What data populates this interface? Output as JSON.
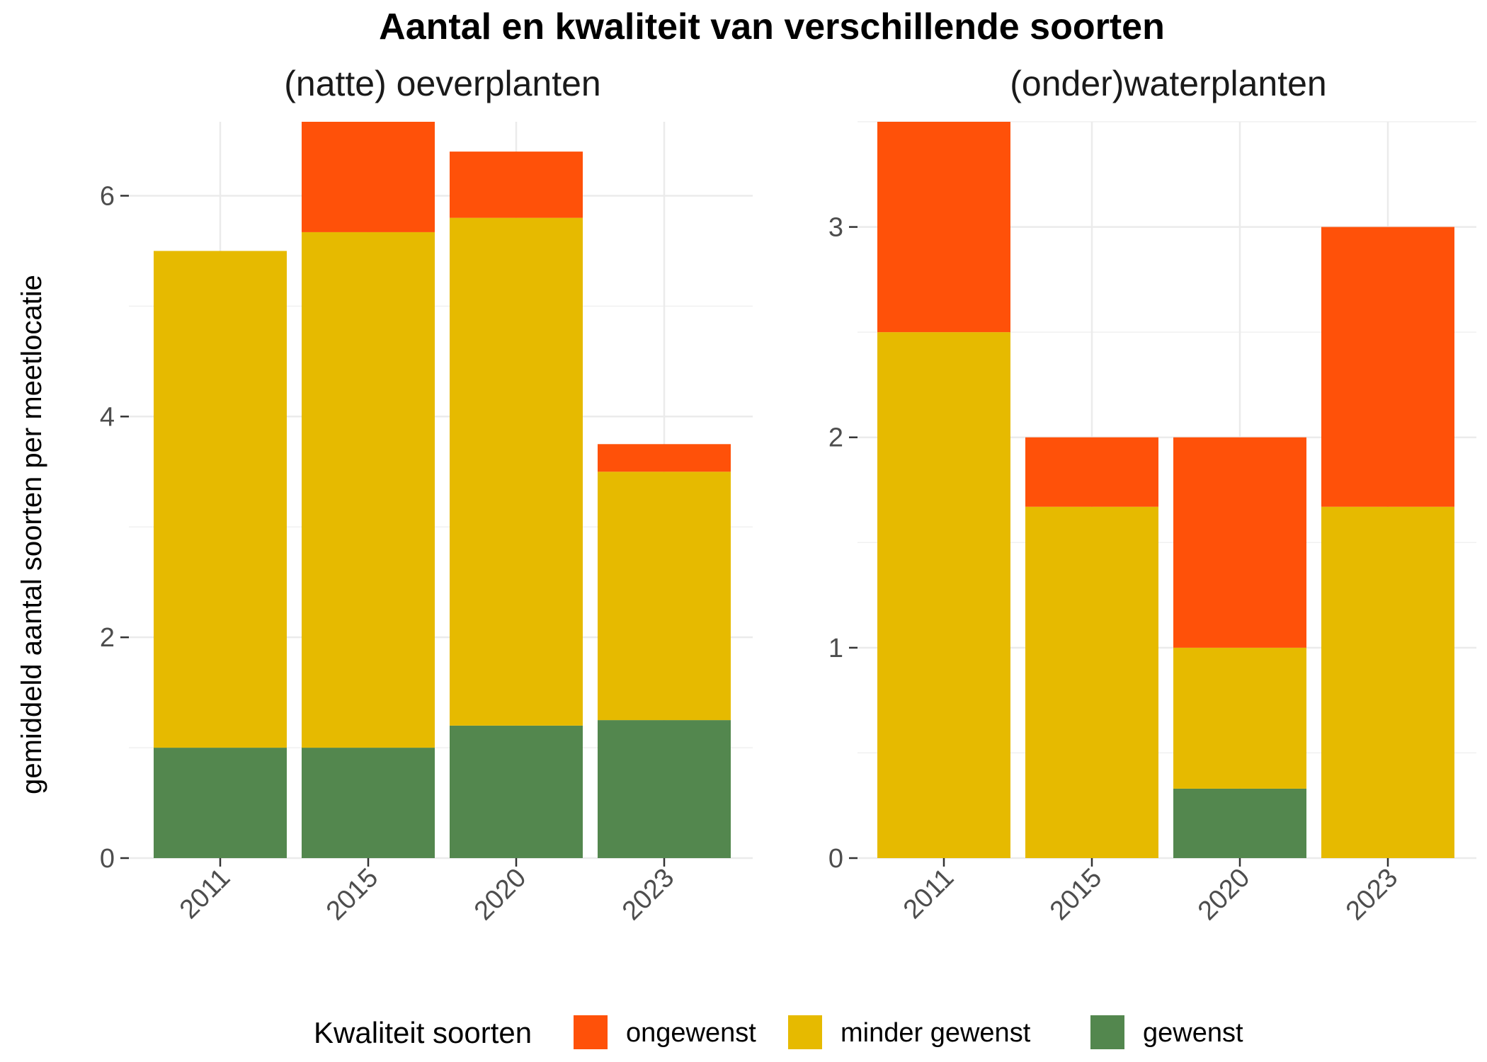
{
  "chart_data": {
    "type": "bar",
    "stacked": true,
    "title": "Aantal en kwaliteit van verschillende soorten",
    "ylabel": "gemiddeld aantal soorten per meetlocatie",
    "xlabel": "",
    "legend": {
      "title": "Kwaliteit soorten",
      "placement": "bottom",
      "entries": [
        {
          "key": "ongewenst",
          "label": "ongewenst",
          "color": "#FF5109"
        },
        {
          "key": "minder_gewenst",
          "label": "minder gewenst",
          "color": "#E6BA00"
        },
        {
          "key": "gewenst",
          "label": "gewenst",
          "color": "#53874E"
        }
      ]
    },
    "grid": true,
    "stack_order_bottom_to_top": [
      "gewenst",
      "minder_gewenst",
      "ongewenst"
    ],
    "facets": [
      {
        "title": "(natte) oeverplanten",
        "categories": [
          "2011",
          "2015",
          "2020",
          "2023"
        ],
        "ylim": [
          0,
          6.67
        ],
        "yticks": [
          0,
          2,
          4,
          6
        ],
        "series": [
          {
            "key": "gewenst",
            "values": [
              1.0,
              1.0,
              1.2,
              1.25
            ]
          },
          {
            "key": "minder_gewenst",
            "values": [
              4.5,
              4.67,
              4.6,
              2.25
            ]
          },
          {
            "key": "ongewenst",
            "values": [
              0.0,
              1.0,
              0.6,
              0.25
            ]
          }
        ]
      },
      {
        "title": "(onder)waterplanten",
        "categories": [
          "2011",
          "2015",
          "2020",
          "2023"
        ],
        "ylim": [
          0,
          3.5
        ],
        "yticks": [
          0,
          1,
          2,
          3
        ],
        "series": [
          {
            "key": "gewenst",
            "values": [
              0.0,
              0.0,
              0.33,
              0.0
            ]
          },
          {
            "key": "minder_gewenst",
            "values": [
              2.5,
              1.67,
              0.67,
              1.67
            ]
          },
          {
            "key": "ongewenst",
            "values": [
              1.0,
              0.33,
              1.0,
              1.33
            ]
          }
        ]
      }
    ]
  }
}
